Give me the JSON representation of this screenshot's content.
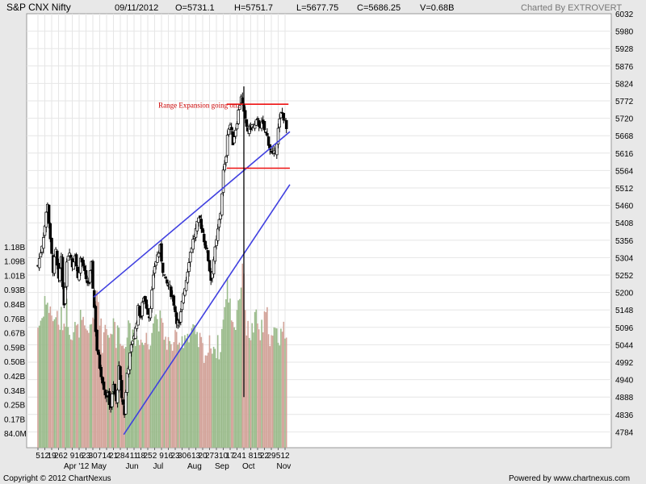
{
  "header": {
    "symbol": "S&P CNX Nifty",
    "date": "09/11/2012",
    "open": "O=5731.1",
    "high": "H=5751.7",
    "low": "L=5677.75",
    "close": "C=5686.25",
    "volume": "V=0.68B",
    "credit": "Charted By EXTROVERT"
  },
  "footer": {
    "copyright": "Copyright © 2012 ChartNexus",
    "powered": "Powered by www.chartnexus.com"
  },
  "colors": {
    "background": "#e8e8e8",
    "plot": "#ffffff",
    "grid": "#e6e6e6",
    "vol_up": "#9bbb8c",
    "vol_down": "#d3a49a",
    "trendline": "#4040e0",
    "range_line": "#ee1111",
    "annotation": "#cc0000"
  },
  "chart_data": {
    "type": "candlestick",
    "price_axis": {
      "ticks": [
        4784,
        4836,
        4888,
        4940,
        4992,
        5044,
        5096,
        5148,
        5200,
        5252,
        5304,
        5356,
        5408,
        5460,
        5512,
        5564,
        5616,
        5668,
        5720,
        5772,
        5824,
        5876,
        5928,
        5980,
        6032
      ],
      "range": [
        4732,
        6032
      ]
    },
    "volume_axis": {
      "ticks": [
        "84.0M",
        "0.17B",
        "0.25B",
        "0.34B",
        "0.42B",
        "0.50B",
        "0.59B",
        "0.67B",
        "0.76B",
        "0.84B",
        "0.93B",
        "1.01B",
        "1.09B",
        "1.18B"
      ],
      "tick_values": [
        0.084,
        0.168,
        0.252,
        0.336,
        0.42,
        0.504,
        0.588,
        0.672,
        0.756,
        0.84,
        0.924,
        1.008,
        1.092,
        1.176
      ],
      "range": [
        0,
        1.26
      ]
    },
    "day_labels": [
      "5",
      "12",
      "19",
      "26",
      "2",
      "9",
      "16",
      "23",
      "30",
      "7",
      "14",
      "21",
      "28",
      "4",
      "11",
      "18",
      "25",
      "2",
      "9",
      "16",
      "23",
      "30",
      "6",
      "13",
      "20",
      "27",
      "3",
      "10",
      "17",
      "24",
      "1",
      "8",
      "15",
      "22",
      "29",
      "5",
      "12"
    ],
    "month_labels": [
      "Apr '12",
      "May",
      "Jun",
      "Jul",
      "Aug",
      "Sep",
      "Oct",
      "Nov"
    ],
    "month_start_weeks": [
      4,
      8,
      13,
      17,
      22,
      26,
      30,
      35
    ],
    "annotation": {
      "text": "Range Expansion going on..",
      "x_week": 17.55,
      "price": 5752
    },
    "trendlines": [
      {
        "name": "upper",
        "from": [
          8.1,
          5186
        ],
        "to": [
          36.7,
          5680
        ]
      },
      {
        "name": "lower",
        "from": [
          12.5,
          4776
        ],
        "to": [
          36.7,
          5522
        ]
      },
      {
        "name": "range-top",
        "from": [
          27.5,
          5762
        ],
        "to": [
          36.5,
          5762
        ]
      },
      {
        "name": "range-bottom",
        "from": [
          27.5,
          5571
        ],
        "to": [
          36.7,
          5571
        ]
      }
    ],
    "vertical_marker": {
      "x_week": 30.0,
      "from": 5815,
      "to": 4888
    },
    "weekly_anchors": [
      [
        0,
        5280,
        0.71
      ],
      [
        0.6,
        5345,
        0.76
      ],
      [
        1.0,
        5400,
        0.88
      ],
      [
        1.4,
        5470,
        0.81
      ],
      [
        1.8,
        5350,
        0.84
      ],
      [
        2.2,
        5270,
        0.72
      ],
      [
        2.6,
        5320,
        0.8
      ],
      [
        3.0,
        5230,
        0.7
      ],
      [
        3.4,
        5310,
        0.76
      ],
      [
        3.8,
        5150,
        0.73
      ],
      [
        4.2,
        5300,
        0.82
      ],
      [
        4.6,
        5330,
        0.71
      ],
      [
        5.0,
        5280,
        0.68
      ],
      [
        5.4,
        5320,
        0.7
      ],
      [
        5.8,
        5240,
        0.67
      ],
      [
        6.2,
        5300,
        0.75
      ],
      [
        6.6,
        5280,
        0.7
      ],
      [
        7.0,
        5230,
        0.65
      ],
      [
        7.4,
        5230,
        0.68
      ],
      [
        7.8,
        5280,
        0.77
      ],
      [
        8.1,
        5190,
        0.66
      ],
      [
        8.3,
        5120,
        0.8
      ],
      [
        8.6,
        5030,
        0.93
      ],
      [
        9.0,
        4980,
        0.78
      ],
      [
        9.4,
        4940,
        0.62
      ],
      [
        9.8,
        4900,
        0.72
      ],
      [
        10.2,
        4890,
        0.7
      ],
      [
        10.6,
        4860,
        0.65
      ],
      [
        11.0,
        4920,
        0.78
      ],
      [
        11.4,
        4870,
        0.6
      ],
      [
        11.8,
        4970,
        0.76
      ],
      [
        12.2,
        4890,
        0.58
      ],
      [
        12.6,
        4840,
        0.62
      ],
      [
        13.0,
        4960,
        0.7
      ],
      [
        13.4,
        5010,
        0.66
      ],
      [
        13.8,
        5060,
        0.71
      ],
      [
        14.2,
        5090,
        0.62
      ],
      [
        14.6,
        5150,
        0.68
      ],
      [
        15.0,
        5130,
        0.63
      ],
      [
        15.4,
        5190,
        0.61
      ],
      [
        15.8,
        5160,
        0.64
      ],
      [
        16.2,
        5130,
        0.6
      ],
      [
        16.6,
        5200,
        0.73
      ],
      [
        17.0,
        5280,
        0.78
      ],
      [
        17.4,
        5310,
        0.76
      ],
      [
        17.8,
        5330,
        0.74
      ],
      [
        18.2,
        5270,
        0.68
      ],
      [
        18.6,
        5230,
        0.64
      ],
      [
        19.0,
        5220,
        0.62
      ],
      [
        19.4,
        5200,
        0.57
      ],
      [
        19.8,
        5170,
        0.64
      ],
      [
        20.2,
        5120,
        0.61
      ],
      [
        20.6,
        5100,
        0.58
      ],
      [
        20.9,
        5150,
        0.68
      ],
      [
        21.2,
        5200,
        0.62
      ],
      [
        21.6,
        5240,
        0.7
      ],
      [
        22.0,
        5300,
        0.63
      ],
      [
        22.4,
        5340,
        0.68
      ],
      [
        22.8,
        5370,
        0.66
      ],
      [
        23.2,
        5400,
        0.61
      ],
      [
        23.6,
        5420,
        0.63
      ],
      [
        24.0,
        5380,
        0.58
      ],
      [
        24.4,
        5340,
        0.55
      ],
      [
        24.8,
        5300,
        0.57
      ],
      [
        25.2,
        5240,
        0.62
      ],
      [
        25.6,
        5300,
        0.6
      ],
      [
        26.0,
        5350,
        0.58
      ],
      [
        26.3,
        5400,
        0.6
      ],
      [
        26.6,
        5440,
        0.55
      ],
      [
        27.0,
        5560,
        0.8
      ],
      [
        27.3,
        5580,
        0.82
      ],
      [
        27.6,
        5680,
        0.95
      ],
      [
        28.0,
        5700,
        0.84
      ],
      [
        28.4,
        5650,
        0.74
      ],
      [
        28.8,
        5690,
        0.72
      ],
      [
        29.2,
        5740,
        0.88
      ],
      [
        29.6,
        5790,
        0.94
      ],
      [
        30.0,
        5730,
        1.08
      ],
      [
        30.3,
        5700,
        0.7
      ],
      [
        30.7,
        5680,
        0.68
      ],
      [
        31.1,
        5700,
        0.67
      ],
      [
        31.5,
        5690,
        0.72
      ],
      [
        31.9,
        5710,
        0.76
      ],
      [
        32.3,
        5700,
        0.65
      ],
      [
        32.7,
        5700,
        0.7
      ],
      [
        33.1,
        5680,
        0.75
      ],
      [
        33.5,
        5660,
        0.77
      ],
      [
        33.9,
        5620,
        0.62
      ],
      [
        34.3,
        5600,
        0.65
      ],
      [
        34.7,
        5640,
        0.67
      ],
      [
        35.1,
        5700,
        0.64
      ],
      [
        35.5,
        5740,
        0.7
      ],
      [
        35.9,
        5720,
        0.69
      ],
      [
        36.2,
        5686,
        0.68
      ]
    ]
  }
}
